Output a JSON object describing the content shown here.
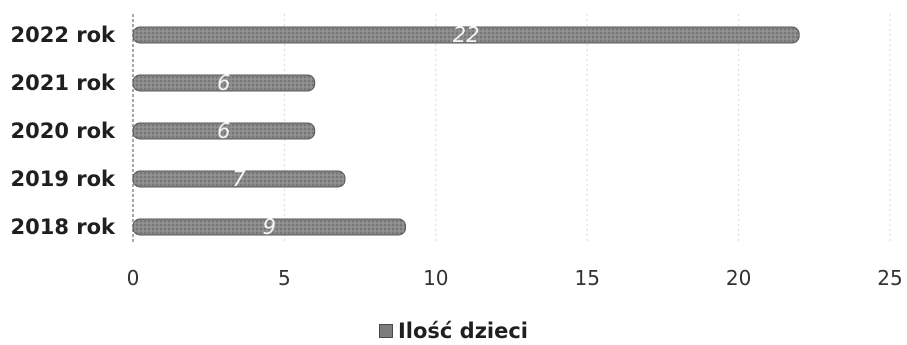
{
  "chart_data": {
    "type": "bar",
    "orientation": "horizontal",
    "categories": [
      "2022 rok",
      "2021 rok",
      "2020 rok",
      "2019 rok",
      "2018 rok"
    ],
    "series": [
      {
        "name": "Ilość dzieci",
        "values": [
          22,
          6,
          6,
          7,
          9
        ],
        "color": "#7d7d7d"
      }
    ],
    "xlim": [
      0,
      25
    ],
    "xticks": [
      0,
      5,
      10,
      15,
      20,
      25
    ],
    "grid": true,
    "legend_position": "bottom"
  }
}
